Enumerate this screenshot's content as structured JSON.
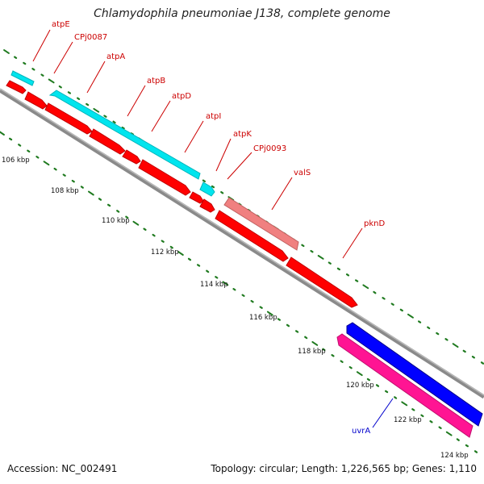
{
  "title": "Chlamydophila pneumoniae J138, complete genome",
  "footer": {
    "accession": "Accession: NC_002491",
    "summary": "Topology: circular; Length: 1,226,565 bp; Genes: 1,110"
  },
  "colors": {
    "backbone": "#8a8a8a",
    "tick": "#1f7a1f",
    "forward_gene": "#ff0000",
    "reverse_gene": "#00e5ee",
    "trna": "#f08080",
    "blue_gene": "#0000ff",
    "pink_gene": "#ff1493",
    "gene_label": "#cc0000",
    "blue_label": "#0000cc"
  },
  "scale_labels": [
    "106 kbp",
    "108 kbp",
    "110 kbp",
    "112 kbp",
    "114 kbp",
    "116 kbp",
    "118 kbp",
    "120 kbp",
    "122 kbp",
    "124 kbp"
  ],
  "gene_labels": [
    {
      "name": "atpE",
      "color_key": "gene_label"
    },
    {
      "name": "CPj0087",
      "color_key": "gene_label"
    },
    {
      "name": "atpA",
      "color_key": "gene_label"
    },
    {
      "name": "atpB",
      "color_key": "gene_label"
    },
    {
      "name": "atpD",
      "color_key": "gene_label"
    },
    {
      "name": "atpI",
      "color_key": "gene_label"
    },
    {
      "name": "atpK",
      "color_key": "gene_label"
    },
    {
      "name": "CPj0093",
      "color_key": "gene_label"
    },
    {
      "name": "valS",
      "color_key": "gene_label"
    },
    {
      "name": "pknD",
      "color_key": "gene_label"
    },
    {
      "name": "uvrA",
      "color_key": "blue_label"
    }
  ]
}
